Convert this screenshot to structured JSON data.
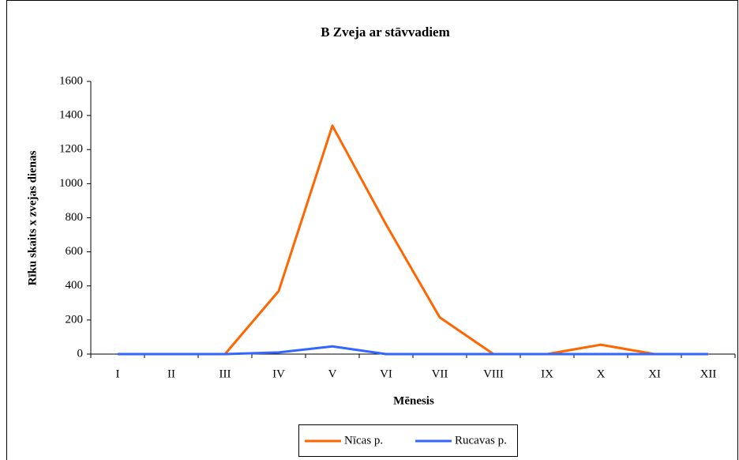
{
  "chart_data": {
    "type": "line",
    "title": "B   Zveja ar stāvvadiem",
    "x_label": "Mēnesis",
    "y_label": "Rīku skaits x zvejas dienas",
    "categories": [
      "I",
      "II",
      "III",
      "IV",
      "V",
      "VI",
      "VII",
      "VIII",
      "IX",
      "X",
      "XI",
      "XII"
    ],
    "series": [
      {
        "name": "Nīcas p.",
        "color": "#ff6600",
        "values": [
          0,
          0,
          0,
          370,
          1340,
          760,
          215,
          0,
          0,
          55,
          0,
          0
        ]
      },
      {
        "name": "Rucavas p.",
        "color": "#3366ff",
        "values": [
          0,
          0,
          0,
          10,
          45,
          0,
          0,
          0,
          0,
          0,
          0,
          0
        ]
      }
    ],
    "ylim": [
      0,
      1600
    ],
    "yticks": [
      0,
      200,
      400,
      600,
      800,
      1000,
      1200,
      1400,
      1600
    ],
    "grid": false,
    "legend": "bottom"
  }
}
